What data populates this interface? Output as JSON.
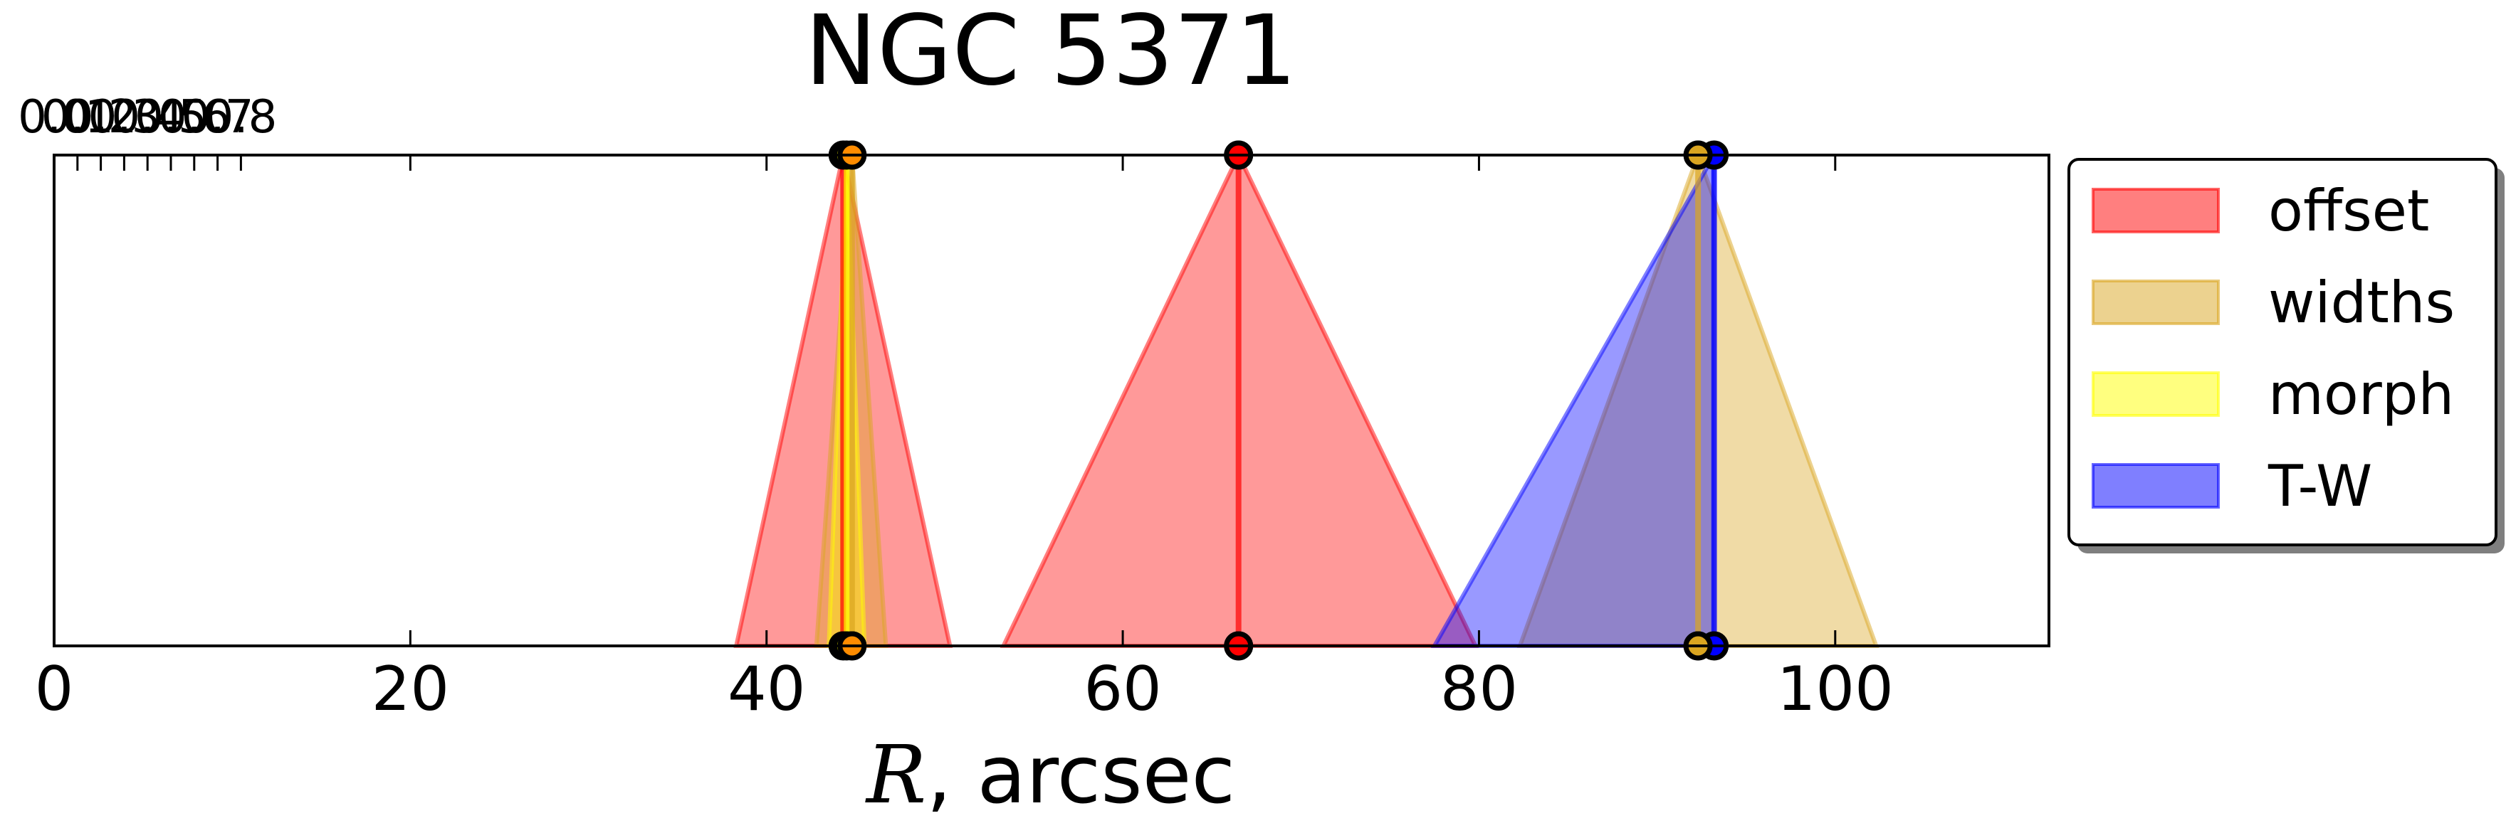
{
  "chart_data": {
    "type": "area",
    "title": "NGC 5371",
    "xlabel_symbol": "R",
    "xlabel_unit": ", arcsec",
    "xlim": [
      0,
      112
    ],
    "xticks": [
      0,
      20,
      40,
      60,
      80,
      100
    ],
    "top_axis": {
      "lim": [
        0,
        0.85
      ],
      "ticks": [
        "0.0",
        "0.1",
        "0.2",
        "0.3",
        "0.4",
        "0.5",
        "0.6",
        "0.7",
        "0.8"
      ]
    },
    "grid": false,
    "legend_position": "right, outside top",
    "series": [
      {
        "name": "offset",
        "color": "#ff0000",
        "markers": "#ff0000",
        "triangles": [
          {
            "peak": 44.3,
            "low": 38.3,
            "high": 50.3
          },
          {
            "peak": 66.5,
            "low": 53.3,
            "high": 79.8
          }
        ]
      },
      {
        "name": "widths",
        "color": "#daa520",
        "markers": "#daa520",
        "triangles": [
          {
            "peak": 44.8,
            "low": 42.8,
            "high": 46.7
          },
          {
            "peak": 92.3,
            "low": 82.3,
            "high": 102.3
          }
        ]
      },
      {
        "name": "morph",
        "color": "#ffff00",
        "markers": "#ffff00",
        "triangles": [
          {
            "peak": 44.5,
            "low": 43.5,
            "high": 45.5
          }
        ]
      },
      {
        "name": "T-W",
        "color": "#0000ff",
        "markers": "#0000ff",
        "triangles": [
          {
            "peak": 93.2,
            "low": 77.5,
            "high": 93.2
          }
        ]
      }
    ],
    "extra_markers": [
      {
        "x": 44.8,
        "color": "#ff8c00"
      },
      {
        "x": 66.5,
        "color": "#ff0000"
      },
      {
        "x": 92.3,
        "color": "#daa520"
      }
    ]
  }
}
